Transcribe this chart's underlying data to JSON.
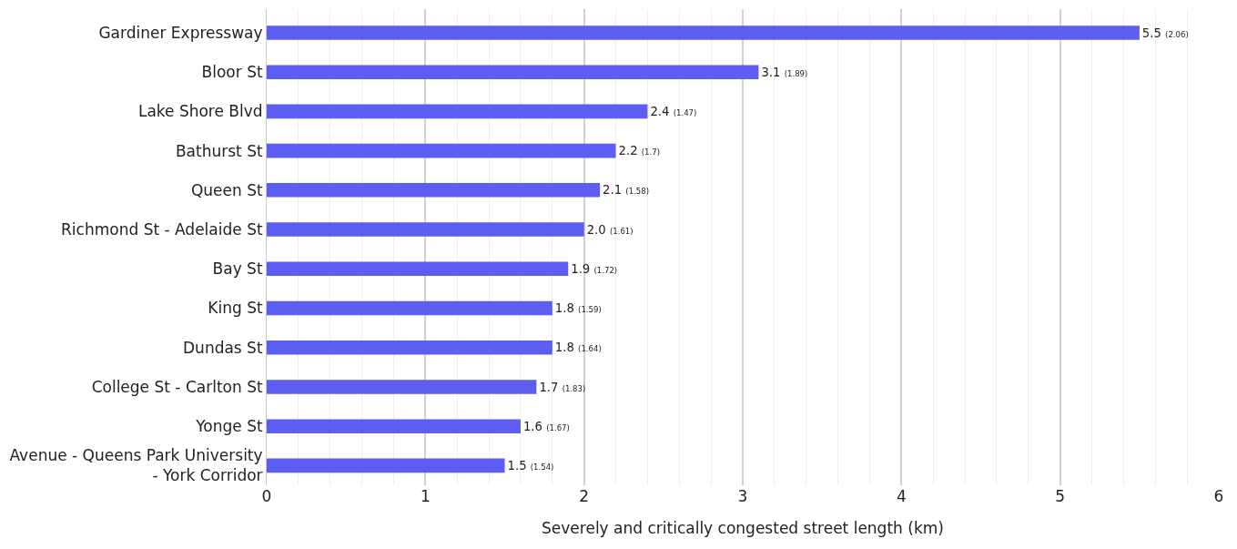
{
  "chart_data": {
    "type": "bar",
    "orientation": "horizontal",
    "xlabel": "Severely and critically congested street length (km)",
    "categories": [
      "Gardiner Expressway",
      "Bloor St",
      "Lake Shore Blvd",
      "Bathurst St",
      "Queen St",
      "Richmond St - Adelaide St",
      "Bay St",
      "King St",
      "Dundas St",
      "College St - Carlton St",
      "Yonge St",
      "Avenue - Queens Park University - York Corridor"
    ],
    "values": [
      5.5,
      3.1,
      2.4,
      2.2,
      2.1,
      2.0,
      1.9,
      1.8,
      1.8,
      1.7,
      1.6,
      1.5
    ],
    "value_labels": [
      "5.5 (2.06)",
      "3.1 (1.89)",
      "2.4 (1.47)",
      "2.2 (1.7)",
      "2.1 (1.58)",
      "2.0 (1.61)",
      "1.9 (1.72)",
      "1.8 (1.59)",
      "1.8 (1.64)",
      "1.7 (1.83)",
      "1.6 (1.67)",
      "1.5 (1.54)"
    ],
    "color": "#5b5ef0",
    "xlim": [
      0,
      6
    ],
    "xticks": [
      0,
      1,
      2,
      3,
      4,
      5,
      6
    ],
    "grid": "x"
  }
}
